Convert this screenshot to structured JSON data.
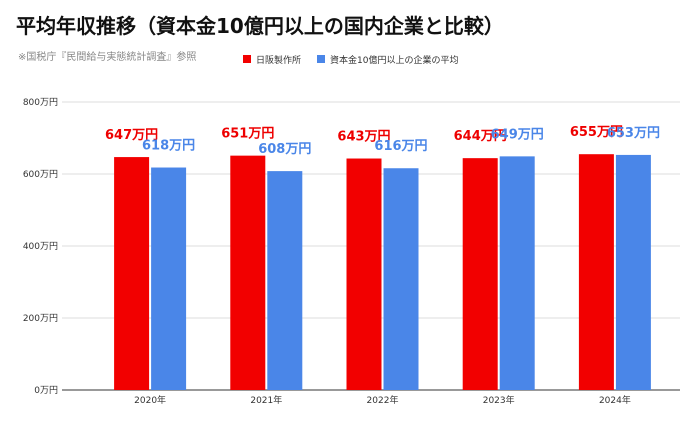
{
  "title": "平均年収推移（資本金10億円以上の国内企業と比較）",
  "source": "※国税庁『民間給与実態統計調査』参照",
  "chart_data": {
    "type": "bar",
    "categories": [
      "2020年",
      "2021年",
      "2022年",
      "2023年",
      "2024年"
    ],
    "series": [
      {
        "name": "日阪製作所",
        "color": "#f20000",
        "label_color": "#ee0000",
        "values": [
          647,
          651,
          643,
          644,
          655
        ],
        "labels": [
          "647万円",
          "651万円",
          "643万円",
          "644万円",
          "655万円"
        ]
      },
      {
        "name": "資本金10億円以上の企業の平均",
        "color": "#4a86e8",
        "label_color": "#4a86e8",
        "values": [
          618,
          608,
          616,
          649,
          653
        ],
        "labels": [
          "618万円",
          "608万円",
          "616万円",
          "649万円",
          "653万円"
        ]
      }
    ],
    "y_ticks": [
      0,
      200,
      400,
      600,
      800
    ],
    "y_tick_labels": [
      "0万円",
      "200万円",
      "400万円",
      "600万円",
      "800万円"
    ],
    "ylim": [
      0,
      800
    ],
    "grid": true,
    "legend_position": "top"
  }
}
